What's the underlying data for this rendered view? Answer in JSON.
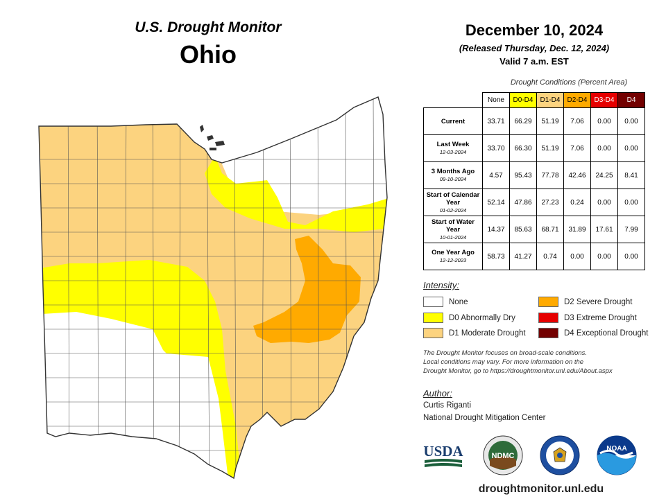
{
  "header": {
    "usdm_title": "U.S. Drought Monitor",
    "state": "Ohio"
  },
  "date_block": {
    "date": "December 10, 2024",
    "released": "(Released Thursday, Dec. 12, 2024)",
    "valid": "Valid 7 a.m. EST"
  },
  "table": {
    "caption": "Drought Conditions (Percent Area)",
    "columns": [
      "None",
      "D0-D4",
      "D1-D4",
      "D2-D4",
      "D3-D4",
      "D4"
    ],
    "column_colors": [
      "#ffffff",
      "#ffff00",
      "#fcd37f",
      "#ffaa00",
      "#e60000",
      "#730000"
    ],
    "rows": [
      {
        "label": "Current",
        "sub": "",
        "values": [
          "33.71",
          "66.29",
          "51.19",
          "7.06",
          "0.00",
          "0.00"
        ]
      },
      {
        "label": "Last Week",
        "sub": "12-03-2024",
        "values": [
          "33.70",
          "66.30",
          "51.19",
          "7.06",
          "0.00",
          "0.00"
        ]
      },
      {
        "label": "3 Months Ago",
        "sub": "09-10-2024",
        "values": [
          "4.57",
          "95.43",
          "77.78",
          "42.46",
          "24.25",
          "8.41"
        ]
      },
      {
        "label": "Start of Calendar Year",
        "sub": "01-02-2024",
        "values": [
          "52.14",
          "47.86",
          "27.23",
          "0.24",
          "0.00",
          "0.00"
        ]
      },
      {
        "label": "Start of Water Year",
        "sub": "10-01-2024",
        "values": [
          "14.37",
          "85.63",
          "68.71",
          "31.89",
          "17.61",
          "7.99"
        ]
      },
      {
        "label": "One Year Ago",
        "sub": "12-12-2023",
        "values": [
          "58.73",
          "41.27",
          "0.74",
          "0.00",
          "0.00",
          "0.00"
        ]
      }
    ]
  },
  "legend": {
    "title": "Intensity:",
    "items": [
      {
        "label": "None",
        "color": "#ffffff"
      },
      {
        "label": "D0 Abnormally Dry",
        "color": "#ffff00"
      },
      {
        "label": "D1 Moderate Drought",
        "color": "#fcd37f"
      },
      {
        "label": "D2 Severe Drought",
        "color": "#ffaa00"
      },
      {
        "label": "D3 Extreme Drought",
        "color": "#e60000"
      },
      {
        "label": "D4 Exceptional Drought",
        "color": "#730000"
      }
    ]
  },
  "note": {
    "line1": "The Drought Monitor focuses on broad-scale conditions.",
    "line2": "Local conditions may vary. For more information on the",
    "line3": "Drought Monitor, go to https://droughtmonitor.unl.edu/About.aspx"
  },
  "author": {
    "title": "Author:",
    "name": "Curtis Riganti",
    "org": "National Drought Mitigation Center"
  },
  "logos": {
    "usda": "USDA",
    "ndmc": "NDMC",
    "noaa": "NOAA"
  },
  "footer": {
    "url": "droughtmonitor.unl.edu"
  }
}
